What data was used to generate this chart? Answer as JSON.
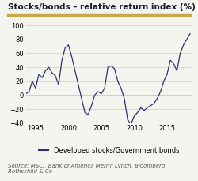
{
  "title": "Stocks/bonds – relative return index (%)",
  "title_color": "#1a1a2e",
  "title_fontsize": 7.5,
  "line_color": "#2e3270",
  "line_width": 0.9,
  "ylim": [
    -40,
    100
  ],
  "yticks": [
    -40,
    -20,
    0,
    20,
    40,
    60,
    80,
    100
  ],
  "xticks": [
    1995,
    2000,
    2005,
    2010,
    2015
  ],
  "xmin": 1993.5,
  "xmax": 2018.8,
  "grid_color": "#cccccc",
  "background_color": "#f5f5f0",
  "legend_label": "Developed stocks/Government bonds",
  "source_text": "Source: MSCI, Bank of America Merrill Lynch, Bloomberg,\nRothschild & Co",
  "source_fontsize": 5.0,
  "legend_fontsize": 6.0,
  "tick_fontsize": 6.0,
  "title_bar_color": "#c9a84c",
  "data_x": [
    1993.5,
    1994.0,
    1994.5,
    1995.0,
    1995.5,
    1996.0,
    1996.5,
    1997.0,
    1997.5,
    1998.0,
    1998.5,
    1999.0,
    1999.5,
    2000.0,
    2000.5,
    2001.0,
    2001.5,
    2002.0,
    2002.5,
    2003.0,
    2003.5,
    2004.0,
    2004.5,
    2005.0,
    2005.5,
    2006.0,
    2006.5,
    2007.0,
    2007.5,
    2008.0,
    2008.5,
    2009.0,
    2009.5,
    2010.0,
    2010.5,
    2011.0,
    2011.5,
    2012.0,
    2012.5,
    2013.0,
    2013.5,
    2014.0,
    2014.5,
    2015.0,
    2015.5,
    2016.0,
    2016.5,
    2017.0,
    2017.5,
    2018.0,
    2018.5
  ],
  "data_y": [
    2,
    5,
    20,
    10,
    30,
    25,
    35,
    40,
    32,
    28,
    15,
    50,
    68,
    72,
    55,
    35,
    15,
    -5,
    -25,
    -28,
    -15,
    0,
    5,
    2,
    10,
    40,
    42,
    38,
    20,
    10,
    -5,
    -35,
    -42,
    -30,
    -25,
    -18,
    -22,
    -18,
    -15,
    -12,
    -5,
    5,
    20,
    30,
    50,
    45,
    35,
    60,
    72,
    80,
    88
  ]
}
